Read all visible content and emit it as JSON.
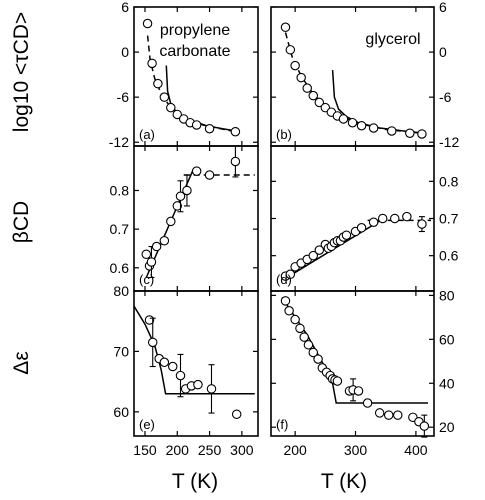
{
  "labels": {
    "xlabel": "T (K)",
    "ylabels": [
      "log10 <τCD>",
      "βCD",
      "Δε"
    ],
    "annotations": [
      [
        "propylene",
        "carbonate"
      ],
      [
        "glycerol"
      ]
    ]
  },
  "chart_data": [
    {
      "type": "scatter",
      "panel": "(a)",
      "column": "propylene carbonate",
      "row": "log10 <τCD>",
      "xlim": [
        133,
        325
      ],
      "ylim": [
        -12.5,
        6
      ],
      "ylog_ticks": [
        -12,
        -6,
        0,
        6
      ],
      "x_ticks": [
        150,
        200,
        250,
        300
      ],
      "points": [
        [
          154,
          3.8
        ],
        [
          161,
          -1.5
        ],
        [
          170,
          -4.2
        ],
        [
          180,
          -6.0
        ],
        [
          190,
          -7.4
        ],
        [
          200,
          -8.3
        ],
        [
          210,
          -8.9
        ],
        [
          220,
          -9.4
        ],
        [
          230,
          -9.7
        ],
        [
          250,
          -10.2
        ],
        [
          290,
          -10.6
        ]
      ],
      "curves": [
        {
          "style": "dashed",
          "points": [
            [
              154,
              2.2
            ],
            [
              158,
              -1
            ],
            [
              165,
              -3.5
            ],
            [
              175,
              -5.5
            ],
            [
              185,
              -6.8
            ],
            [
              200,
              -8.1
            ],
            [
              220,
              -9.1
            ],
            [
              250,
              -9.9
            ],
            [
              290,
              -10.6
            ]
          ]
        },
        {
          "style": "solid",
          "points": [
            [
              183,
              -1.8
            ],
            [
              185,
              -5.2
            ],
            [
              190,
              -6.9
            ],
            [
              200,
              -8.2
            ],
            [
              215,
              -9.0
            ],
            [
              240,
              -9.7
            ],
            [
              270,
              -10.2
            ],
            [
              292,
              -10.5
            ]
          ]
        }
      ]
    },
    {
      "type": "scatter",
      "panel": "(b)",
      "column": "glycerol",
      "row": "log10 <τCD>",
      "xlim": [
        160,
        430
      ],
      "ylim": [
        -12.5,
        6
      ],
      "ylog_ticks": [
        -12,
        -6,
        0,
        6
      ],
      "x_ticks": [
        200,
        300,
        400
      ],
      "points": [
        [
          184,
          3.3
        ],
        [
          192,
          0.3
        ],
        [
          200,
          -1.8
        ],
        [
          210,
          -3.4
        ],
        [
          220,
          -4.8
        ],
        [
          230,
          -5.8
        ],
        [
          240,
          -6.7
        ],
        [
          250,
          -7.4
        ],
        [
          260,
          -8.0
        ],
        [
          270,
          -8.5
        ],
        [
          280,
          -8.9
        ],
        [
          295,
          -9.4
        ],
        [
          310,
          -9.8
        ],
        [
          330,
          -10.1
        ],
        [
          360,
          -10.5
        ],
        [
          390,
          -10.8
        ],
        [
          410,
          -10.9
        ]
      ],
      "curves": [
        {
          "style": "dashed",
          "points": [
            [
              184,
              2.6
            ],
            [
              195,
              -0.6
            ],
            [
              210,
              -3.2
            ],
            [
              230,
              -5.6
            ],
            [
              260,
              -7.9
            ],
            [
              300,
              -9.4
            ],
            [
              350,
              -10.3
            ],
            [
              410,
              -10.8
            ]
          ]
        },
        {
          "style": "solid",
          "points": [
            [
              262,
              -2.4
            ],
            [
              265,
              -6.0
            ],
            [
              272,
              -7.6
            ],
            [
              285,
              -8.6
            ],
            [
              305,
              -9.4
            ],
            [
              340,
              -10.1
            ],
            [
              380,
              -10.5
            ],
            [
              415,
              -10.8
            ]
          ]
        }
      ]
    },
    {
      "type": "scatter",
      "panel": "(c)",
      "column": "propylene carbonate",
      "row": "βCD",
      "xlim": [
        133,
        325
      ],
      "ylim": [
        0.54,
        0.915
      ],
      "y_ticks": [
        0.6,
        0.7,
        0.8
      ],
      "x_ticks": [
        150,
        200,
        250,
        300
      ],
      "points": [
        [
          152,
          0.635,
          0
        ],
        [
          157,
          0.605,
          0
        ],
        [
          160,
          0.615,
          0.04
        ],
        [
          168,
          0.655,
          0
        ],
        [
          180,
          0.67,
          0
        ],
        [
          190,
          0.72,
          0
        ],
        [
          200,
          0.76,
          0
        ],
        [
          205,
          0.785,
          0.04
        ],
        [
          215,
          0.8,
          0.04
        ],
        [
          230,
          0.85,
          0
        ],
        [
          250,
          0.84,
          0
        ],
        [
          290,
          0.875,
          0.04
        ]
      ],
      "curves": [
        {
          "style": "solid",
          "points": [
            [
              152,
              0.575
            ],
            [
              225,
              0.855
            ]
          ]
        },
        {
          "style": "dashed",
          "points": [
            [
              210,
              0.84
            ],
            [
              320,
              0.84
            ]
          ]
        }
      ]
    },
    {
      "type": "scatter",
      "panel": "(d)",
      "column": "glycerol",
      "row": "βCD",
      "xlim": [
        160,
        430
      ],
      "ylim": [
        0.505,
        0.895
      ],
      "y_ticks": [
        0.6,
        0.7,
        0.8
      ],
      "x_ticks": [
        200,
        300,
        400
      ],
      "points": [
        [
          184,
          0.545,
          0
        ],
        [
          192,
          0.55,
          0
        ],
        [
          200,
          0.57,
          0
        ],
        [
          210,
          0.58,
          0
        ],
        [
          220,
          0.59,
          0
        ],
        [
          230,
          0.6,
          0
        ],
        [
          240,
          0.615,
          0
        ],
        [
          250,
          0.63,
          0
        ],
        [
          255,
          0.62,
          0
        ],
        [
          260,
          0.625,
          0
        ],
        [
          265,
          0.635,
          0
        ],
        [
          270,
          0.64,
          0
        ],
        [
          275,
          0.64,
          0
        ],
        [
          280,
          0.65,
          0
        ],
        [
          285,
          0.655,
          0
        ],
        [
          300,
          0.665,
          0
        ],
        [
          310,
          0.675,
          0
        ],
        [
          330,
          0.69,
          0
        ],
        [
          345,
          0.7,
          0
        ],
        [
          365,
          0.7,
          0
        ],
        [
          385,
          0.705,
          0
        ],
        [
          410,
          0.685,
          0.02
        ]
      ],
      "curves": [
        {
          "style": "solid",
          "points": [
            [
              180,
              0.535
            ],
            [
              350,
              0.703
            ]
          ]
        },
        {
          "style": "dashed",
          "points": [
            [
              320,
              0.695
            ],
            [
              425,
              0.695
            ]
          ]
        }
      ]
    },
    {
      "type": "scatter",
      "panel": "(e)",
      "column": "propylene carbonate",
      "row": "Δε",
      "xlim": [
        133,
        325
      ],
      "ylim": [
        56,
        80
      ],
      "y_ticks": [
        60,
        70,
        80
      ],
      "x_ticks": [
        150,
        200,
        250,
        300
      ],
      "points": [
        [
          157,
          75.2,
          0
        ],
        [
          162,
          71.5,
          4
        ],
        [
          172,
          68.8,
          0
        ],
        [
          180,
          68.2,
          0
        ],
        [
          193,
          67.5,
          0
        ],
        [
          205,
          66.0,
          3.5
        ],
        [
          213,
          63.8,
          0
        ],
        [
          222,
          64.3,
          0
        ],
        [
          232,
          64.5,
          0
        ],
        [
          253,
          63.8,
          4
        ],
        [
          292,
          59.6,
          0
        ]
      ],
      "curves": [
        {
          "style": "solid",
          "points": [
            [
              133,
              77.5
            ],
            [
              150,
              74.5
            ],
            [
              165,
              71.0
            ],
            [
              175,
              67.0
            ],
            [
              182,
              63.0
            ],
            [
              320,
              63.0
            ]
          ]
        }
      ]
    },
    {
      "type": "scatter",
      "panel": "(f)",
      "column": "glycerol",
      "row": "Δε",
      "xlim": [
        160,
        430
      ],
      "ylim": [
        16,
        82
      ],
      "y_ticks": [
        20,
        40,
        60,
        80
      ],
      "x_ticks": [
        200,
        300,
        400
      ],
      "points": [
        [
          184,
          77.5,
          0
        ],
        [
          190,
          73.0,
          0
        ],
        [
          200,
          69.0,
          0
        ],
        [
          208,
          65.0,
          0
        ],
        [
          215,
          61.0,
          0
        ],
        [
          222,
          57.5,
          0
        ],
        [
          230,
          54.0,
          0
        ],
        [
          238,
          51.0,
          0
        ],
        [
          245,
          47.0,
          0
        ],
        [
          252,
          45.0,
          0
        ],
        [
          258,
          43.5,
          0
        ],
        [
          262,
          42.0,
          0
        ],
        [
          266,
          41.5,
          0
        ],
        [
          270,
          41.0,
          0
        ],
        [
          290,
          36.5,
          0
        ],
        [
          296,
          37.0,
          5
        ],
        [
          305,
          36.5,
          0
        ],
        [
          320,
          31.0,
          0
        ],
        [
          340,
          26.5,
          0
        ],
        [
          355,
          25.5,
          0
        ],
        [
          370,
          25.5,
          0
        ],
        [
          395,
          24.5,
          0
        ],
        [
          405,
          22.5,
          0
        ],
        [
          414,
          20.5,
          5
        ]
      ],
      "curves": [
        {
          "style": "solid",
          "points": [
            [
              178,
              79.0
            ],
            [
              220,
              62.0
            ],
            [
              250,
              47.0
            ],
            [
              262,
              40.0
            ],
            [
              268,
              31.0
            ],
            [
              420,
              31.0
            ]
          ]
        }
      ]
    }
  ]
}
